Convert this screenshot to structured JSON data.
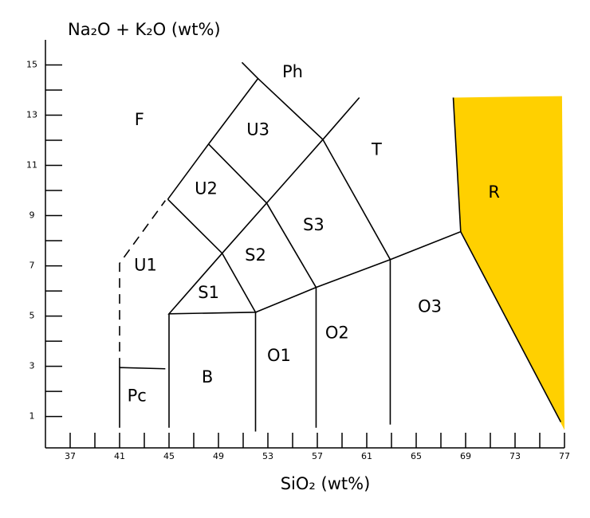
{
  "chart_data": {
    "type": "tas",
    "x_label": "SiO₂ (wt%)",
    "y_label": "Na₂O + K₂O (wt%)",
    "xlim": [
      35,
      77
    ],
    "ylim": [
      -0.25,
      16
    ],
    "xticks": [
      37,
      41,
      45,
      49,
      53,
      57,
      61,
      65,
      69,
      73,
      77
    ],
    "xminor": [
      39,
      43,
      47,
      51,
      55,
      59,
      63,
      67,
      71,
      75
    ],
    "yticks": [
      1,
      3,
      5,
      7,
      9,
      11,
      13,
      15
    ],
    "yminor": [
      2,
      4,
      6,
      8,
      10,
      12,
      14
    ],
    "line_color": "#000000",
    "highlight": {
      "name": "R",
      "color": "#ffd000",
      "points": [
        [
          68.0,
          13.7
        ],
        [
          76.8,
          13.76
        ],
        [
          77,
          0.46
        ],
        [
          68.6,
          8.36
        ]
      ]
    },
    "boundaries": [
      {
        "style": "dashed",
        "points": [
          [
            41,
            2.95
          ],
          [
            41,
            7.1
          ],
          [
            44.7,
            9.6
          ]
        ]
      },
      {
        "style": "solid",
        "points": [
          [
            44.9,
            9.65
          ],
          [
            48.2,
            11.85
          ],
          [
            52.2,
            14.46
          ],
          [
            50.9,
            15.1
          ]
        ]
      },
      {
        "style": "solid",
        "points": [
          [
            52.2,
            14.46
          ],
          [
            57.45,
            12.03
          ],
          [
            60.4,
            13.7
          ]
        ]
      },
      {
        "style": "solid",
        "points": [
          [
            44.9,
            9.65
          ],
          [
            49.3,
            7.5
          ],
          [
            52.0,
            5.15
          ],
          [
            45.0,
            5.09
          ],
          [
            49.3,
            7.5
          ]
        ]
      },
      {
        "style": "solid",
        "points": [
          [
            48.2,
            11.85
          ],
          [
            52.9,
            9.5
          ],
          [
            49.3,
            7.5
          ]
        ]
      },
      {
        "style": "solid",
        "points": [
          [
            57.45,
            12.03
          ],
          [
            52.9,
            9.5
          ],
          [
            56.9,
            6.14
          ]
        ]
      },
      {
        "style": "solid",
        "points": [
          [
            57.45,
            12.03
          ],
          [
            62.9,
            7.25
          ]
        ]
      },
      {
        "style": "solid",
        "points": [
          [
            52.0,
            5.15
          ],
          [
            56.9,
            6.14
          ],
          [
            62.9,
            7.25
          ],
          [
            68.6,
            8.36
          ],
          [
            68.0,
            13.7
          ]
        ]
      },
      {
        "style": "solid",
        "points": [
          [
            68.6,
            8.36
          ],
          [
            76.7,
            0.78
          ]
        ]
      },
      {
        "style": "solid",
        "points": [
          [
            41,
            0.55
          ],
          [
            41,
            2.95
          ],
          [
            44.7,
            2.9
          ]
        ]
      },
      {
        "style": "solid",
        "points": [
          [
            45.0,
            0.55
          ],
          [
            45.0,
            5.09
          ]
        ]
      },
      {
        "style": "solid",
        "points": [
          [
            52.0,
            0.4
          ],
          [
            52.0,
            5.15
          ]
        ]
      },
      {
        "style": "solid",
        "points": [
          [
            56.9,
            0.55
          ],
          [
            56.9,
            6.14
          ]
        ]
      },
      {
        "style": "solid",
        "points": [
          [
            62.9,
            0.68
          ],
          [
            62.9,
            7.25
          ]
        ]
      }
    ],
    "annotations": [
      {
        "text": "Ph",
        "x": 55.0,
        "y": 14.7
      },
      {
        "text": "F",
        "x": 42.6,
        "y": 12.8
      },
      {
        "text": "U3",
        "x": 52.2,
        "y": 12.4
      },
      {
        "text": "T",
        "x": 61.8,
        "y": 11.6
      },
      {
        "text": "R",
        "x": 71.3,
        "y": 9.9
      },
      {
        "text": "U2",
        "x": 48.0,
        "y": 10.05
      },
      {
        "text": "S3",
        "x": 56.7,
        "y": 8.6
      },
      {
        "text": "U1",
        "x": 43.1,
        "y": 7.0
      },
      {
        "text": "S2",
        "x": 52.0,
        "y": 7.4
      },
      {
        "text": "S1",
        "x": 48.2,
        "y": 5.9
      },
      {
        "text": "O3",
        "x": 66.1,
        "y": 5.35
      },
      {
        "text": "O2",
        "x": 58.6,
        "y": 4.3
      },
      {
        "text": "O1",
        "x": 53.9,
        "y": 3.4
      },
      {
        "text": "B",
        "x": 48.1,
        "y": 2.55
      },
      {
        "text": "Pc",
        "x": 42.4,
        "y": 1.8
      }
    ]
  }
}
